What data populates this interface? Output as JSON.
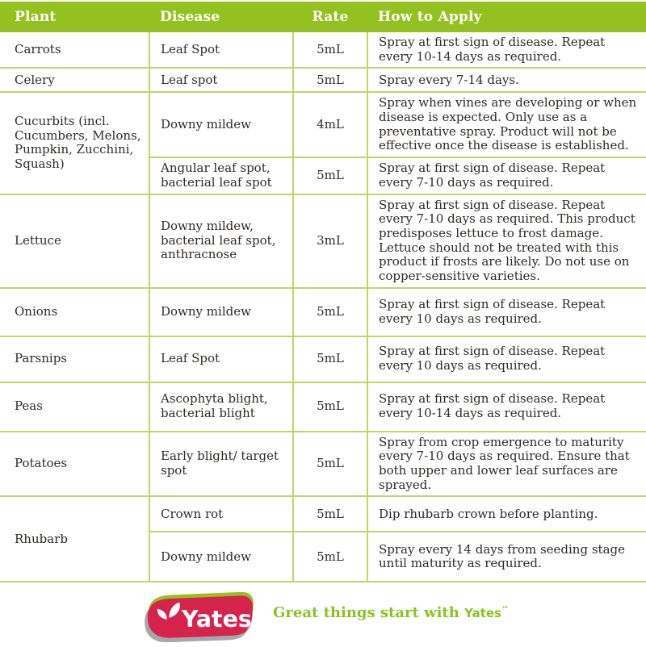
{
  "chart_data": {
    "type": "table",
    "columns": [
      "Plant",
      "Disease",
      "Rate",
      "How to Apply"
    ],
    "rows": [
      {
        "plant": "Carrots",
        "span": 1,
        "disease": "Leaf Spot",
        "rate": "5mL",
        "apply": "Spray at first sign of disease. Repeat every 10-14 days as required."
      },
      {
        "plant": "Celery",
        "span": 1,
        "disease": "Leaf spot",
        "rate": "5mL",
        "apply": "Spray every 7-14 days."
      },
      {
        "plant": "Cucurbits (incl. Cucumbers, Melons, Pumpkin, Zucchini, Squash)",
        "span": 2,
        "disease": "Downy mildew",
        "rate": "4mL",
        "apply": "Spray when vines are developing or when disease is expected. Only use as a preventative spray. Product will not be effective once the disease is established."
      },
      {
        "disease": "Angular leaf spot, bacterial leaf spot",
        "rate": "5mL",
        "apply": "Spray at first sign of disease. Repeat every 7-10 days as required."
      },
      {
        "plant": "Lettuce",
        "span": 1,
        "disease": "Downy mildew, bacterial leaf spot, anthracnose",
        "rate": "3mL",
        "apply": "Spray at first sign of disease. Repeat every 7-10 days as required. This product predisposes lettuce to frost damage. Lettuce should not be treated with this product if frosts are likely. Do not use on copper-sensitive varieties."
      },
      {
        "plant": "Onions",
        "span": 1,
        "disease": "Downy mildew",
        "rate": "5mL",
        "apply": "Spray at first sign of disease. Repeat every 10 days as required."
      },
      {
        "plant": "Parsnips",
        "span": 1,
        "disease": "Leaf Spot",
        "rate": "5mL",
        "apply": "Spray at first sign of disease. Repeat every 10 days as required."
      },
      {
        "plant": "Peas",
        "span": 1,
        "disease": "Ascophyta blight, bacterial blight",
        "rate": "5mL",
        "apply": "Spray at first sign of disease. Repeat every 10-14 days as required."
      },
      {
        "plant": "Potatoes",
        "span": 1,
        "disease": "Early blight/ target spot",
        "rate": "5mL",
        "apply": "Spray from crop emergence to maturity every 7-10 days as required. Ensure that both upper and lower leaf surfaces are sprayed."
      },
      {
        "plant": "Rhubarb",
        "span": 2,
        "disease": "Crown rot",
        "rate": "5mL",
        "apply": "Dip rhubarb crown before planting."
      },
      {
        "disease": "Downy mildew",
        "rate": "5mL",
        "apply": "Spray every 14 days from seeding stage until maturity as required."
      }
    ]
  },
  "footer": {
    "logo": {
      "brand": "Yates",
      "registered": "®"
    },
    "tagline": {
      "prefix": "Great things start with ",
      "brand": "Yates",
      "tm": "™"
    }
  },
  "colors": {
    "header_green": "#94c120",
    "border_green": "#c3d46e",
    "logo_red": "#d6234c",
    "logo_shadow_gray": "#a6a8ab",
    "tagline_green": "#8cc220",
    "body_text": "#2f2b28"
  }
}
